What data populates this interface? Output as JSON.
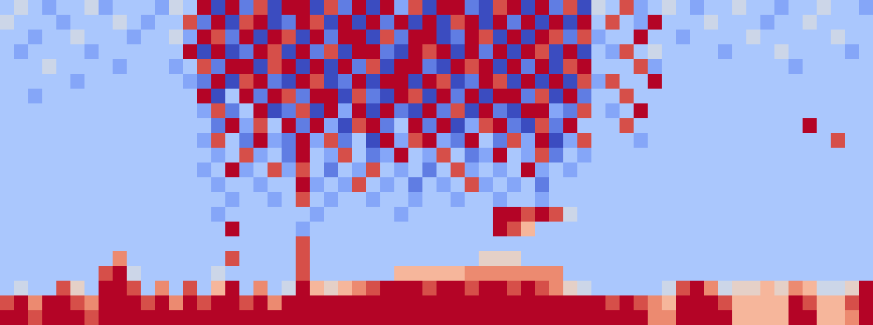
{
  "chart_data": {
    "type": "heatmap",
    "tick_labels": false,
    "values": [
      [
        3,
        4,
        3,
        2,
        3,
        3,
        4,
        2,
        3,
        3,
        3,
        2,
        4,
        3,
        9,
        0,
        9,
        1,
        8,
        0,
        9,
        9,
        0,
        8,
        1,
        9,
        0,
        9,
        2,
        8,
        0,
        9,
        9,
        1,
        0,
        8,
        9,
        0,
        9,
        1,
        8,
        0,
        4,
        3,
        8,
        2,
        3,
        4,
        3,
        2,
        3,
        3,
        4,
        3,
        3,
        2,
        3,
        3,
        4,
        3,
        3,
        2
      ],
      [
        4,
        3,
        3,
        3,
        2,
        3,
        3,
        3,
        4,
        3,
        2,
        3,
        3,
        8,
        1,
        9,
        0,
        8,
        9,
        0,
        1,
        9,
        8,
        0,
        9,
        0,
        9,
        1,
        9,
        0,
        9,
        0,
        8,
        9,
        0,
        9,
        1,
        9,
        0,
        9,
        0,
        9,
        3,
        8,
        3,
        2,
        9,
        3,
        3,
        3,
        4,
        3,
        3,
        3,
        2,
        3,
        3,
        4,
        3,
        3,
        3,
        3
      ],
      [
        3,
        3,
        2,
        3,
        3,
        4,
        3,
        3,
        3,
        2,
        3,
        3,
        4,
        2,
        9,
        8,
        1,
        9,
        0,
        9,
        8,
        0,
        9,
        1,
        9,
        9,
        0,
        8,
        1,
        9,
        9,
        0,
        1,
        9,
        8,
        0,
        9,
        0,
        9,
        8,
        1,
        8,
        2,
        3,
        3,
        9,
        3,
        3,
        2,
        3,
        3,
        3,
        3,
        4,
        3,
        3,
        3,
        3,
        3,
        4,
        3,
        3
      ],
      [
        3,
        2,
        3,
        3,
        3,
        3,
        2,
        3,
        3,
        3,
        3,
        3,
        3,
        9,
        0,
        9,
        0,
        1,
        9,
        8,
        0,
        9,
        1,
        8,
        0,
        9,
        9,
        1,
        0,
        9,
        8,
        9,
        0,
        9,
        1,
        9,
        0,
        9,
        8,
        0,
        9,
        0,
        3,
        2,
        8,
        3,
        4,
        3,
        3,
        3,
        3,
        2,
        3,
        3,
        3,
        4,
        3,
        3,
        3,
        3,
        2,
        3
      ],
      [
        3,
        3,
        3,
        4,
        3,
        3,
        3,
        3,
        2,
        3,
        3,
        3,
        2,
        3,
        8,
        1,
        9,
        9,
        0,
        8,
        9,
        0,
        9,
        0,
        9,
        1,
        8,
        0,
        9,
        9,
        1,
        0,
        9,
        8,
        9,
        0,
        9,
        1,
        9,
        0,
        8,
        9,
        3,
        3,
        3,
        8,
        2,
        3,
        3,
        3,
        3,
        3,
        3,
        3,
        3,
        3,
        2,
        3,
        3,
        3,
        3,
        3
      ],
      [
        3,
        3,
        3,
        3,
        3,
        2,
        3,
        3,
        3,
        3,
        3,
        3,
        3,
        2,
        1,
        9,
        0,
        8,
        9,
        1,
        0,
        9,
        8,
        0,
        1,
        9,
        0,
        9,
        9,
        0,
        9,
        8,
        0,
        1,
        9,
        8,
        0,
        9,
        0,
        9,
        0,
        8,
        2,
        8,
        3,
        3,
        9,
        3,
        3,
        3,
        3,
        3,
        3,
        3,
        3,
        3,
        3,
        3,
        3,
        3,
        3,
        3
      ],
      [
        3,
        3,
        2,
        3,
        3,
        3,
        3,
        3,
        3,
        3,
        3,
        3,
        3,
        3,
        9,
        0,
        3,
        9,
        1,
        9,
        8,
        1,
        9,
        9,
        0,
        8,
        1,
        0,
        9,
        8,
        0,
        9,
        1,
        9,
        0,
        9,
        9,
        1,
        8,
        0,
        9,
        1,
        3,
        3,
        8,
        3,
        3,
        3,
        3,
        3,
        3,
        3,
        3,
        3,
        3,
        3,
        3,
        3,
        3,
        3,
        3,
        3
      ],
      [
        3,
        3,
        3,
        3,
        3,
        3,
        3,
        3,
        3,
        3,
        3,
        3,
        3,
        3,
        2,
        8,
        1,
        3,
        9,
        0,
        1,
        8,
        0,
        9,
        2,
        9,
        0,
        9,
        1,
        0,
        9,
        1,
        8,
        0,
        9,
        1,
        0,
        9,
        9,
        2,
        1,
        8,
        3,
        2,
        3,
        9,
        3,
        3,
        3,
        3,
        3,
        3,
        3,
        3,
        3,
        3,
        3,
        3,
        3,
        3,
        3,
        3
      ],
      [
        3,
        3,
        3,
        3,
        3,
        3,
        3,
        3,
        3,
        3,
        3,
        3,
        3,
        3,
        3,
        1,
        9,
        2,
        8,
        3,
        9,
        1,
        9,
        2,
        0,
        8,
        9,
        1,
        3,
        9,
        1,
        9,
        0,
        2,
        8,
        9,
        1,
        0,
        8,
        1,
        9,
        3,
        3,
        3,
        8,
        3,
        3,
        3,
        3,
        3,
        3,
        3,
        3,
        3,
        3,
        3,
        3,
        9,
        3,
        3,
        3,
        3
      ],
      [
        3,
        3,
        3,
        3,
        3,
        3,
        3,
        3,
        3,
        3,
        3,
        3,
        3,
        3,
        2,
        8,
        3,
        1,
        9,
        2,
        1,
        9,
        2,
        8,
        1,
        3,
        0,
        9,
        2,
        8,
        9,
        2,
        1,
        9,
        3,
        1,
        8,
        2,
        9,
        0,
        2,
        8,
        3,
        3,
        3,
        2,
        3,
        3,
        3,
        3,
        3,
        3,
        3,
        3,
        3,
        3,
        3,
        3,
        3,
        8,
        3,
        3
      ],
      [
        3,
        3,
        3,
        3,
        3,
        3,
        3,
        3,
        3,
        3,
        3,
        3,
        3,
        3,
        3,
        2,
        3,
        8,
        2,
        3,
        1,
        9,
        3,
        2,
        8,
        3,
        1,
        2,
        9,
        3,
        2,
        8,
        3,
        1,
        2,
        9,
        3,
        2,
        8,
        1,
        3,
        2,
        3,
        3,
        3,
        3,
        3,
        3,
        3,
        3,
        3,
        3,
        3,
        3,
        3,
        3,
        3,
        3,
        3,
        3,
        3,
        3
      ],
      [
        3,
        3,
        3,
        3,
        3,
        3,
        3,
        3,
        3,
        3,
        3,
        3,
        3,
        3,
        2,
        3,
        9,
        2,
        3,
        8,
        2,
        8,
        3,
        1,
        3,
        2,
        8,
        3,
        2,
        3,
        1,
        3,
        8,
        2,
        3,
        2,
        3,
        9,
        2,
        3,
        2,
        3,
        3,
        3,
        3,
        3,
        3,
        3,
        3,
        3,
        3,
        3,
        3,
        3,
        3,
        3,
        3,
        3,
        3,
        3,
        3,
        3
      ],
      [
        3,
        3,
        3,
        3,
        3,
        3,
        3,
        3,
        3,
        3,
        3,
        3,
        3,
        3,
        3,
        2,
        3,
        3,
        2,
        3,
        3,
        9,
        2,
        3,
        2,
        8,
        3,
        2,
        3,
        1,
        3,
        2,
        3,
        8,
        2,
        3,
        2,
        3,
        1,
        3,
        3,
        3,
        3,
        3,
        3,
        3,
        3,
        3,
        3,
        3,
        3,
        3,
        3,
        3,
        3,
        3,
        3,
        3,
        3,
        3,
        3,
        3
      ],
      [
        3,
        3,
        3,
        3,
        3,
        3,
        3,
        3,
        3,
        3,
        3,
        3,
        3,
        3,
        3,
        3,
        2,
        3,
        3,
        2,
        3,
        8,
        3,
        2,
        3,
        3,
        2,
        3,
        3,
        2,
        3,
        3,
        2,
        3,
        3,
        2,
        3,
        3,
        2,
        3,
        3,
        3,
        3,
        3,
        3,
        3,
        3,
        3,
        3,
        3,
        3,
        3,
        3,
        3,
        3,
        3,
        3,
        3,
        3,
        3,
        3,
        3
      ],
      [
        3,
        3,
        3,
        3,
        3,
        3,
        3,
        3,
        3,
        3,
        3,
        3,
        3,
        3,
        3,
        2,
        3,
        3,
        3,
        3,
        3,
        3,
        2,
        3,
        3,
        3,
        3,
        3,
        2,
        3,
        3,
        3,
        3,
        3,
        3,
        9,
        9,
        8,
        9,
        8,
        4,
        3,
        3,
        3,
        3,
        3,
        3,
        3,
        3,
        3,
        3,
        3,
        3,
        3,
        3,
        3,
        3,
        3,
        3,
        3,
        3,
        3
      ],
      [
        3,
        3,
        3,
        3,
        3,
        3,
        3,
        3,
        3,
        3,
        3,
        3,
        3,
        3,
        3,
        3,
        9,
        3,
        3,
        3,
        3,
        2,
        3,
        3,
        3,
        3,
        3,
        3,
        3,
        3,
        3,
        3,
        3,
        3,
        3,
        9,
        8,
        6,
        3,
        3,
        3,
        3,
        3,
        3,
        3,
        3,
        3,
        3,
        3,
        3,
        3,
        3,
        3,
        3,
        3,
        3,
        3,
        3,
        3,
        3,
        3,
        3
      ],
      [
        3,
        3,
        3,
        3,
        3,
        3,
        3,
        3,
        3,
        3,
        3,
        3,
        3,
        3,
        3,
        3,
        3,
        3,
        3,
        3,
        3,
        8,
        3,
        3,
        3,
        3,
        3,
        3,
        3,
        3,
        3,
        3,
        3,
        3,
        3,
        3,
        3,
        3,
        3,
        3,
        3,
        3,
        3,
        3,
        3,
        3,
        3,
        3,
        3,
        3,
        3,
        3,
        3,
        3,
        3,
        3,
        3,
        3,
        3,
        3,
        3,
        3
      ],
      [
        3,
        3,
        3,
        3,
        3,
        3,
        3,
        3,
        7,
        3,
        3,
        3,
        3,
        3,
        3,
        3,
        8,
        3,
        3,
        3,
        3,
        8,
        3,
        3,
        3,
        3,
        3,
        3,
        3,
        3,
        3,
        3,
        3,
        3,
        5,
        5,
        5,
        3,
        3,
        3,
        3,
        3,
        3,
        3,
        3,
        3,
        3,
        3,
        3,
        3,
        3,
        3,
        3,
        3,
        3,
        3,
        3,
        3,
        3,
        3,
        3,
        3
      ],
      [
        3,
        3,
        3,
        3,
        3,
        3,
        3,
        8,
        9,
        4,
        3,
        3,
        3,
        3,
        3,
        4,
        3,
        3,
        3,
        3,
        3,
        8,
        3,
        3,
        3,
        3,
        3,
        3,
        6,
        6,
        6,
        6,
        6,
        7,
        7,
        7,
        7,
        7,
        7,
        7,
        3,
        3,
        3,
        3,
        3,
        3,
        3,
        3,
        3,
        3,
        3,
        3,
        3,
        3,
        3,
        3,
        3,
        3,
        3,
        3,
        3,
        3
      ],
      [
        3,
        4,
        3,
        3,
        8,
        5,
        3,
        9,
        9,
        8,
        3,
        7,
        3,
        8,
        3,
        6,
        9,
        3,
        7,
        3,
        4,
        9,
        6,
        5,
        6,
        7,
        8,
        9,
        9,
        9,
        8,
        9,
        9,
        8,
        9,
        9,
        8,
        9,
        8,
        7,
        5,
        4,
        3,
        3,
        3,
        3,
        3,
        4,
        8,
        9,
        7,
        4,
        5,
        5,
        6,
        5,
        7,
        6,
        4,
        4,
        5,
        9
      ],
      [
        8,
        9,
        7,
        9,
        9,
        8,
        7,
        9,
        9,
        9,
        8,
        9,
        7,
        9,
        8,
        9,
        9,
        8,
        9,
        7,
        9,
        9,
        9,
        9,
        9,
        9,
        9,
        9,
        9,
        9,
        9,
        9,
        9,
        9,
        9,
        9,
        9,
        9,
        9,
        9,
        9,
        9,
        9,
        8,
        9,
        8,
        7,
        6,
        9,
        9,
        9,
        8,
        6,
        6,
        6,
        6,
        9,
        8,
        6,
        6,
        8,
        9
      ],
      [
        9,
        9,
        8,
        9,
        9,
        9,
        8,
        9,
        9,
        9,
        9,
        9,
        9,
        9,
        9,
        9,
        9,
        9,
        9,
        9,
        9,
        9,
        9,
        9,
        9,
        9,
        9,
        9,
        9,
        9,
        9,
        9,
        9,
        9,
        9,
        9,
        9,
        9,
        9,
        9,
        9,
        9,
        9,
        9,
        9,
        9,
        7,
        7,
        9,
        9,
        9,
        9,
        6,
        6,
        6,
        6,
        9,
        9,
        6,
        6,
        7,
        9
      ]
    ]
  }
}
